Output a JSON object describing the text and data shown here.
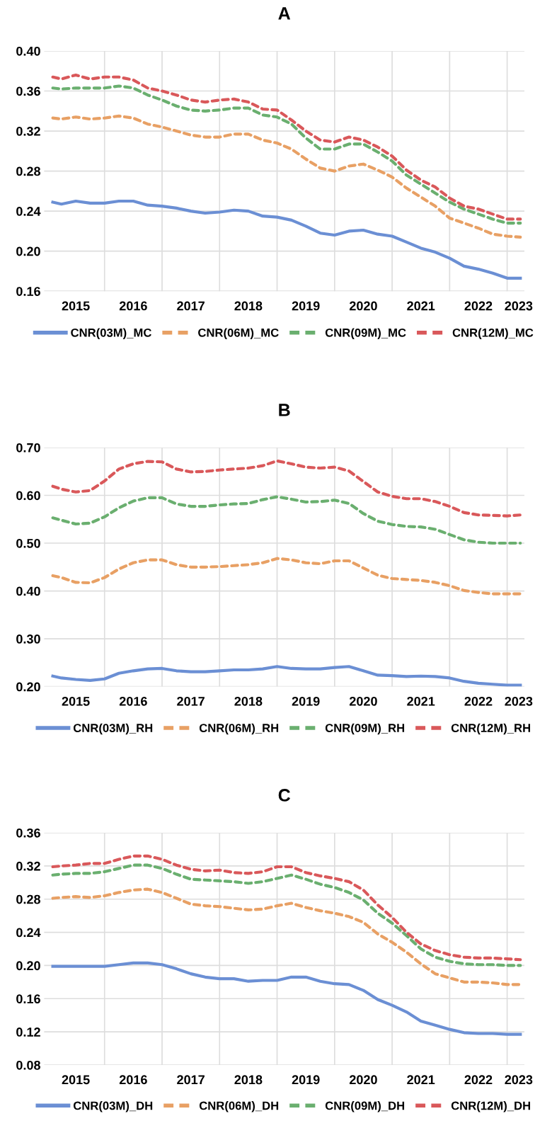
{
  "chart_data": [
    {
      "type": "line",
      "title": "A",
      "x": [
        2015.1,
        2015.25,
        2015.5,
        2015.75,
        2016,
        2016.25,
        2016.5,
        2016.75,
        2017,
        2017.25,
        2017.5,
        2017.75,
        2018,
        2018.25,
        2018.5,
        2018.75,
        2019,
        2019.25,
        2019.5,
        2019.75,
        2020,
        2020.25,
        2020.5,
        2020.75,
        2021,
        2021.25,
        2021.5,
        2021.75,
        2022,
        2022.25,
        2022.5,
        2022.75,
        2023,
        2023.23
      ],
      "series": [
        {
          "name": "CNR(03M)_MC",
          "color": "#6b8fd4",
          "line_style": "solid",
          "values": [
            0.249,
            0.247,
            0.25,
            0.248,
            0.248,
            0.25,
            0.25,
            0.246,
            0.245,
            0.243,
            0.24,
            0.238,
            0.239,
            0.241,
            0.24,
            0.235,
            0.234,
            0.231,
            0.225,
            0.218,
            0.216,
            0.22,
            0.221,
            0.217,
            0.215,
            0.209,
            0.203,
            0.199,
            0.193,
            0.185,
            0.182,
            0.178,
            0.173,
            0.173
          ]
        },
        {
          "name": "CNR(06M)_MC",
          "color": "#e8a064",
          "line_style": "dashed",
          "values": [
            0.333,
            0.332,
            0.334,
            0.332,
            0.333,
            0.335,
            0.333,
            0.327,
            0.324,
            0.32,
            0.316,
            0.314,
            0.314,
            0.317,
            0.317,
            0.311,
            0.308,
            0.302,
            0.292,
            0.283,
            0.28,
            0.285,
            0.287,
            0.281,
            0.274,
            0.263,
            0.254,
            0.245,
            0.233,
            0.228,
            0.223,
            0.217,
            0.215,
            0.214
          ]
        },
        {
          "name": "CNR(09M)_MC",
          "color": "#6aaf6f",
          "line_style": "dashed",
          "values": [
            0.363,
            0.362,
            0.363,
            0.363,
            0.363,
            0.365,
            0.363,
            0.356,
            0.351,
            0.345,
            0.341,
            0.34,
            0.341,
            0.343,
            0.343,
            0.336,
            0.334,
            0.327,
            0.313,
            0.302,
            0.302,
            0.307,
            0.307,
            0.299,
            0.29,
            0.276,
            0.267,
            0.258,
            0.249,
            0.242,
            0.237,
            0.232,
            0.228,
            0.228
          ]
        },
        {
          "name": "CNR(12M)_MC",
          "color": "#d9585a",
          "line_style": "dashed",
          "values": [
            0.374,
            0.372,
            0.376,
            0.372,
            0.374,
            0.374,
            0.371,
            0.363,
            0.36,
            0.356,
            0.351,
            0.349,
            0.351,
            0.352,
            0.349,
            0.342,
            0.341,
            0.331,
            0.32,
            0.311,
            0.309,
            0.314,
            0.311,
            0.304,
            0.295,
            0.281,
            0.271,
            0.264,
            0.253,
            0.245,
            0.242,
            0.237,
            0.232,
            0.232
          ]
        }
      ],
      "xlim": [
        2014.95,
        2023.3
      ],
      "xticks": [
        {
          "value": 2015.5,
          "label": "2015"
        },
        {
          "value": 2016.5,
          "label": "2016"
        },
        {
          "value": 2017.5,
          "label": "2017"
        },
        {
          "value": 2018.5,
          "label": "2018"
        },
        {
          "value": 2019.5,
          "label": "2019"
        },
        {
          "value": 2020.5,
          "label": "2020"
        },
        {
          "value": 2021.5,
          "label": "2021"
        },
        {
          "value": 2022.5,
          "label": "2022"
        },
        {
          "value": 2023.2,
          "label": "2023"
        },
        {
          "value": 2016,
          "label": null
        },
        {
          "value": 2017,
          "label": null
        },
        {
          "value": 2018,
          "label": null
        },
        {
          "value": 2019,
          "label": null
        },
        {
          "value": 2020,
          "label": null
        },
        {
          "value": 2021,
          "label": null
        },
        {
          "value": 2022,
          "label": null
        },
        {
          "value": 2023,
          "label": null
        }
      ],
      "ylim": [
        0.16,
        0.4
      ],
      "yticks": [
        {
          "value": 0.16,
          "label": "0.16"
        },
        {
          "value": 0.2,
          "label": "0.20"
        },
        {
          "value": 0.24,
          "label": "0.24"
        },
        {
          "value": 0.28,
          "label": "0.28"
        },
        {
          "value": 0.32,
          "label": "0.32"
        },
        {
          "value": 0.36,
          "label": "0.36"
        },
        {
          "value": 0.4,
          "label": "0.40"
        }
      ],
      "grid": true,
      "legend": "bottom",
      "marker": "none"
    },
    {
      "type": "line",
      "title": "B",
      "x": [
        2015.1,
        2015.25,
        2015.5,
        2015.75,
        2016,
        2016.25,
        2016.5,
        2016.75,
        2017,
        2017.25,
        2017.5,
        2017.75,
        2018,
        2018.25,
        2018.5,
        2018.75,
        2019,
        2019.25,
        2019.5,
        2019.75,
        2020,
        2020.25,
        2020.5,
        2020.75,
        2021,
        2021.25,
        2021.5,
        2021.75,
        2022,
        2022.25,
        2022.5,
        2022.75,
        2023,
        2023.23
      ],
      "series": [
        {
          "name": "CNR(03M)_RH",
          "color": "#6b8fd4",
          "line_style": "solid",
          "values": [
            0.222,
            0.218,
            0.215,
            0.213,
            0.216,
            0.228,
            0.233,
            0.237,
            0.238,
            0.233,
            0.231,
            0.231,
            0.233,
            0.235,
            0.235,
            0.237,
            0.242,
            0.238,
            0.237,
            0.237,
            0.24,
            0.242,
            0.233,
            0.224,
            0.223,
            0.221,
            0.222,
            0.221,
            0.218,
            0.211,
            0.207,
            0.205,
            0.203,
            0.203
          ]
        },
        {
          "name": "CNR(06M)_RH",
          "color": "#e8a064",
          "line_style": "dashed",
          "values": [
            0.432,
            0.428,
            0.418,
            0.417,
            0.428,
            0.446,
            0.459,
            0.465,
            0.465,
            0.455,
            0.45,
            0.45,
            0.451,
            0.453,
            0.455,
            0.459,
            0.468,
            0.465,
            0.459,
            0.457,
            0.463,
            0.463,
            0.448,
            0.433,
            0.426,
            0.424,
            0.422,
            0.418,
            0.411,
            0.401,
            0.397,
            0.394,
            0.394,
            0.394
          ]
        },
        {
          "name": "CNR(09M)_RH",
          "color": "#6aaf6f",
          "line_style": "dashed",
          "values": [
            0.553,
            0.548,
            0.54,
            0.542,
            0.555,
            0.574,
            0.588,
            0.595,
            0.595,
            0.582,
            0.577,
            0.577,
            0.58,
            0.582,
            0.583,
            0.591,
            0.597,
            0.592,
            0.586,
            0.587,
            0.59,
            0.583,
            0.562,
            0.546,
            0.539,
            0.535,
            0.534,
            0.529,
            0.518,
            0.507,
            0.502,
            0.5,
            0.5,
            0.5
          ]
        },
        {
          "name": "CNR(12M)_RH",
          "color": "#d9585a",
          "line_style": "dashed",
          "values": [
            0.619,
            0.613,
            0.607,
            0.61,
            0.63,
            0.655,
            0.666,
            0.671,
            0.67,
            0.655,
            0.649,
            0.65,
            0.653,
            0.655,
            0.657,
            0.662,
            0.672,
            0.666,
            0.659,
            0.657,
            0.659,
            0.651,
            0.629,
            0.607,
            0.598,
            0.593,
            0.593,
            0.587,
            0.577,
            0.564,
            0.559,
            0.558,
            0.557,
            0.559
          ]
        }
      ],
      "xlim": [
        2014.95,
        2023.3
      ],
      "xticks": [
        {
          "value": 2015.5,
          "label": "2015"
        },
        {
          "value": 2016.5,
          "label": "2016"
        },
        {
          "value": 2017.5,
          "label": "2017"
        },
        {
          "value": 2018.5,
          "label": "2018"
        },
        {
          "value": 2019.5,
          "label": "2019"
        },
        {
          "value": 2020.5,
          "label": "2020"
        },
        {
          "value": 2021.5,
          "label": "2021"
        },
        {
          "value": 2022.5,
          "label": "2022"
        },
        {
          "value": 2023.2,
          "label": "2023"
        },
        {
          "value": 2016,
          "label": null
        },
        {
          "value": 2017,
          "label": null
        },
        {
          "value": 2018,
          "label": null
        },
        {
          "value": 2019,
          "label": null
        },
        {
          "value": 2020,
          "label": null
        },
        {
          "value": 2021,
          "label": null
        },
        {
          "value": 2022,
          "label": null
        },
        {
          "value": 2023,
          "label": null
        }
      ],
      "ylim": [
        0.2,
        0.7
      ],
      "yticks": [
        {
          "value": 0.2,
          "label": "0.20"
        },
        {
          "value": 0.3,
          "label": "0.30"
        },
        {
          "value": 0.4,
          "label": "0.40"
        },
        {
          "value": 0.5,
          "label": "0.50"
        },
        {
          "value": 0.6,
          "label": "0.60"
        },
        {
          "value": 0.7,
          "label": "0.70"
        }
      ],
      "grid": true,
      "legend": "bottom",
      "marker": "none"
    },
    {
      "type": "line",
      "title": "C",
      "x": [
        2015.1,
        2015.25,
        2015.5,
        2015.75,
        2016,
        2016.25,
        2016.5,
        2016.75,
        2017,
        2017.25,
        2017.5,
        2017.75,
        2018,
        2018.25,
        2018.5,
        2018.75,
        2019,
        2019.25,
        2019.5,
        2019.75,
        2020,
        2020.25,
        2020.5,
        2020.75,
        2021,
        2021.25,
        2021.5,
        2021.75,
        2022,
        2022.25,
        2022.5,
        2022.75,
        2023,
        2023.23
      ],
      "series": [
        {
          "name": "CNR(03M)_DH",
          "color": "#6b8fd4",
          "line_style": "solid",
          "values": [
            0.199,
            0.199,
            0.199,
            0.199,
            0.199,
            0.201,
            0.203,
            0.203,
            0.201,
            0.196,
            0.19,
            0.186,
            0.184,
            0.184,
            0.181,
            0.182,
            0.182,
            0.186,
            0.186,
            0.181,
            0.178,
            0.177,
            0.17,
            0.159,
            0.152,
            0.144,
            0.133,
            0.128,
            0.123,
            0.119,
            0.118,
            0.118,
            0.117,
            0.117
          ]
        },
        {
          "name": "CNR(06M)_DH",
          "color": "#e8a064",
          "line_style": "dashed",
          "values": [
            0.281,
            0.282,
            0.283,
            0.282,
            0.284,
            0.288,
            0.291,
            0.292,
            0.288,
            0.281,
            0.274,
            0.272,
            0.271,
            0.269,
            0.267,
            0.268,
            0.272,
            0.275,
            0.27,
            0.266,
            0.263,
            0.259,
            0.252,
            0.238,
            0.228,
            0.216,
            0.202,
            0.19,
            0.185,
            0.18,
            0.18,
            0.179,
            0.177,
            0.177
          ]
        },
        {
          "name": "CNR(09M)_DH",
          "color": "#6aaf6f",
          "line_style": "dashed",
          "values": [
            0.309,
            0.31,
            0.311,
            0.311,
            0.313,
            0.317,
            0.321,
            0.321,
            0.317,
            0.31,
            0.304,
            0.303,
            0.302,
            0.301,
            0.299,
            0.301,
            0.305,
            0.309,
            0.304,
            0.298,
            0.294,
            0.288,
            0.279,
            0.263,
            0.251,
            0.236,
            0.22,
            0.21,
            0.205,
            0.202,
            0.201,
            0.201,
            0.2,
            0.2
          ]
        },
        {
          "name": "CNR(12M)_DH",
          "color": "#d9585a",
          "line_style": "dashed",
          "values": [
            0.319,
            0.32,
            0.321,
            0.323,
            0.323,
            0.328,
            0.332,
            0.332,
            0.328,
            0.321,
            0.316,
            0.314,
            0.315,
            0.312,
            0.311,
            0.313,
            0.319,
            0.319,
            0.312,
            0.308,
            0.305,
            0.301,
            0.291,
            0.273,
            0.258,
            0.24,
            0.226,
            0.218,
            0.213,
            0.21,
            0.209,
            0.209,
            0.208,
            0.207
          ]
        }
      ],
      "xlim": [
        2014.95,
        2023.3
      ],
      "xticks": [
        {
          "value": 2015.5,
          "label": "2015"
        },
        {
          "value": 2016.5,
          "label": "2016"
        },
        {
          "value": 2017.5,
          "label": "2017"
        },
        {
          "value": 2018.5,
          "label": "2018"
        },
        {
          "value": 2019.5,
          "label": "2019"
        },
        {
          "value": 2020.5,
          "label": "2020"
        },
        {
          "value": 2021.5,
          "label": "2021"
        },
        {
          "value": 2022.5,
          "label": "2022"
        },
        {
          "value": 2023.2,
          "label": "2023"
        },
        {
          "value": 2016,
          "label": null
        },
        {
          "value": 2017,
          "label": null
        },
        {
          "value": 2018,
          "label": null
        },
        {
          "value": 2019,
          "label": null
        },
        {
          "value": 2020,
          "label": null
        },
        {
          "value": 2021,
          "label": null
        },
        {
          "value": 2022,
          "label": null
        },
        {
          "value": 2023,
          "label": null
        }
      ],
      "ylim": [
        0.08,
        0.36
      ],
      "yticks": [
        {
          "value": 0.08,
          "label": "0.08"
        },
        {
          "value": 0.12,
          "label": "0.12"
        },
        {
          "value": 0.16,
          "label": "0.16"
        },
        {
          "value": 0.2,
          "label": "0.20"
        },
        {
          "value": 0.24,
          "label": "0.24"
        },
        {
          "value": 0.28,
          "label": "0.28"
        },
        {
          "value": 0.32,
          "label": "0.32"
        },
        {
          "value": 0.36,
          "label": "0.36"
        }
      ],
      "grid": true,
      "legend": "bottom",
      "marker": "none"
    }
  ]
}
